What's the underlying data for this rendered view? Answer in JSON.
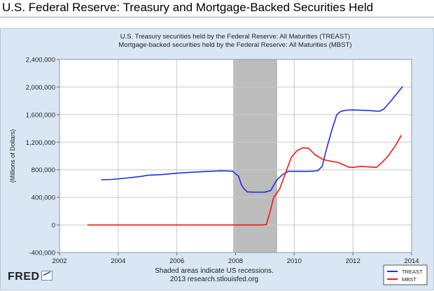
{
  "page": {
    "title": "U.S. Federal Reserve:  Treasury and Mortgage-Backed Securities Held",
    "footer_note_line1": "Shaded areas indicate US recessions.",
    "footer_note_line2": "2013 research.stlouisfed.org",
    "logo_text": "FRED"
  },
  "chart_data": {
    "type": "line",
    "title": "U.S. Treasury securities held by the Federal Reserve: All Maturities (TREAST)",
    "subtitle": "Mortgage-backed securities held by the Federal Reserve: All Maturities (MBST)",
    "xlabel": "",
    "ylabel": "(Millions of Dollars)",
    "xlim": [
      2002,
      2014
    ],
    "ylim": [
      -400000,
      2400000
    ],
    "xticks": [
      2002,
      2004,
      2006,
      2008,
      2010,
      2012,
      2014
    ],
    "xtick_labels": [
      "2002",
      "2004",
      "2006",
      "2008",
      "2010",
      "2012",
      "2014"
    ],
    "yticks": [
      -400000,
      0,
      400000,
      800000,
      1200000,
      1600000,
      2000000,
      2400000
    ],
    "ytick_labels": [
      "-400,000",
      "0",
      "400,000",
      "800,000",
      "1,200,000",
      "1,600,000",
      "2,000,000",
      "2,400,000"
    ],
    "grid": true,
    "legend_position": "bottom-right",
    "recessions": [
      {
        "start": 2007.92,
        "end": 2009.42,
        "color": "#bcbcbc"
      }
    ],
    "series": [
      {
        "name": "TREAST",
        "color": "#1f2fe0",
        "points": [
          [
            2003.42,
            655000
          ],
          [
            2003.8,
            660000
          ],
          [
            2004.3,
            680000
          ],
          [
            2004.8,
            705000
          ],
          [
            2005.0,
            720000
          ],
          [
            2005.5,
            730000
          ],
          [
            2006.0,
            750000
          ],
          [
            2006.5,
            765000
          ],
          [
            2007.0,
            775000
          ],
          [
            2007.5,
            785000
          ],
          [
            2007.9,
            780000
          ],
          [
            2008.0,
            740000
          ],
          [
            2008.1,
            710000
          ],
          [
            2008.2,
            580000
          ],
          [
            2008.3,
            520000
          ],
          [
            2008.4,
            480000
          ],
          [
            2008.6,
            476000
          ],
          [
            2009.0,
            476000
          ],
          [
            2009.2,
            500000
          ],
          [
            2009.4,
            650000
          ],
          [
            2009.6,
            730000
          ],
          [
            2009.8,
            778000
          ],
          [
            2010.0,
            778000
          ],
          [
            2010.5,
            778000
          ],
          [
            2010.8,
            785000
          ],
          [
            2010.95,
            850000
          ],
          [
            2011.1,
            1100000
          ],
          [
            2011.3,
            1400000
          ],
          [
            2011.45,
            1600000
          ],
          [
            2011.6,
            1650000
          ],
          [
            2011.8,
            1665000
          ],
          [
            2012.0,
            1668000
          ],
          [
            2012.5,
            1660000
          ],
          [
            2012.9,
            1648000
          ],
          [
            2013.05,
            1680000
          ],
          [
            2013.3,
            1800000
          ],
          [
            2013.7,
            2010000
          ]
        ]
      },
      {
        "name": "MBST",
        "color": "#ff1010",
        "points": [
          [
            2002.95,
            0
          ],
          [
            2004.0,
            0
          ],
          [
            2005.0,
            0
          ],
          [
            2006.0,
            0
          ],
          [
            2007.0,
            0
          ],
          [
            2008.0,
            0
          ],
          [
            2008.9,
            0
          ],
          [
            2009.05,
            5000
          ],
          [
            2009.15,
            150000
          ],
          [
            2009.3,
            400000
          ],
          [
            2009.5,
            520000
          ],
          [
            2009.7,
            750000
          ],
          [
            2009.9,
            980000
          ],
          [
            2010.1,
            1080000
          ],
          [
            2010.3,
            1120000
          ],
          [
            2010.5,
            1110000
          ],
          [
            2010.7,
            1020000
          ],
          [
            2011.0,
            945000
          ],
          [
            2011.5,
            905000
          ],
          [
            2011.85,
            840000
          ],
          [
            2012.0,
            835000
          ],
          [
            2012.3,
            850000
          ],
          [
            2012.6,
            840000
          ],
          [
            2012.8,
            835000
          ],
          [
            2013.0,
            910000
          ],
          [
            2013.2,
            1000000
          ],
          [
            2013.45,
            1150000
          ],
          [
            2013.65,
            1300000
          ]
        ]
      }
    ]
  }
}
